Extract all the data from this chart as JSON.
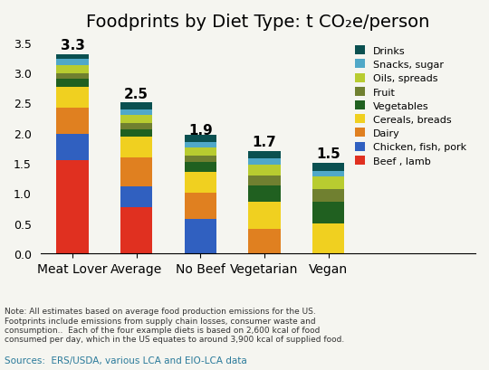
{
  "categories": [
    "Meat Lover",
    "Average",
    "No Beef",
    "Vegetarian",
    "Vegan"
  ],
  "totals": [
    3.3,
    2.5,
    1.9,
    1.7,
    1.5
  ],
  "segments": {
    "Beef , lamb": [
      1.55,
      0.77,
      0.0,
      0.0,
      0.0
    ],
    "Chicken, fish, pork": [
      0.43,
      0.34,
      0.57,
      0.0,
      0.0
    ],
    "Dairy": [
      0.44,
      0.48,
      0.44,
      0.4,
      0.0
    ],
    "Cereals, breads": [
      0.34,
      0.34,
      0.34,
      0.45,
      0.5
    ],
    "Vegetables": [
      0.13,
      0.13,
      0.17,
      0.27,
      0.35
    ],
    "Fruit": [
      0.1,
      0.1,
      0.1,
      0.17,
      0.22
    ],
    "Oils, spreads": [
      0.13,
      0.13,
      0.13,
      0.18,
      0.2
    ],
    "Snacks, sugar": [
      0.1,
      0.1,
      0.1,
      0.1,
      0.1
    ],
    "Drinks": [
      0.08,
      0.11,
      0.11,
      0.13,
      0.13
    ]
  },
  "colors": {
    "Beef , lamb": "#e03020",
    "Chicken, fish, pork": "#3060c0",
    "Dairy": "#e08020",
    "Cereals, breads": "#f0d020",
    "Vegetables": "#206020",
    "Fruit": "#708030",
    "Oils, spreads": "#b8cc30",
    "Snacks, sugar": "#50a8c8",
    "Drinks": "#0a5050"
  },
  "title": "Foodprints by Diet Type: t CO₂e/person",
  "ylim": [
    0,
    3.6
  ],
  "yticks": [
    0.0,
    0.5,
    1.0,
    1.5,
    2.0,
    2.5,
    3.0,
    3.5
  ],
  "note": "Note: All estimates based on average food production emissions for the US.\nFootprints include emissions from supply chain losses, consumer waste and\nconsumption..  Each of the four example diets is based on 2,600 kcal of food\nconsumed per day, which in the US equates to around 3,900 kcal of supplied food.",
  "source": "Sources:  ERS/USDA, various LCA and EIO-LCA data",
  "bg_color": "#f5f5f0"
}
